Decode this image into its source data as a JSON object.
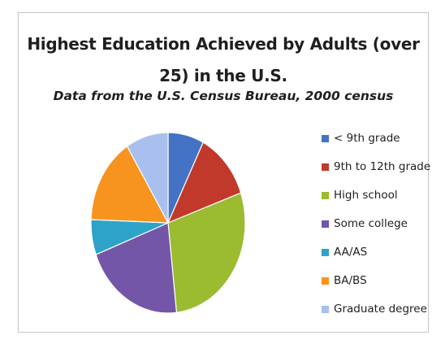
{
  "chart_data": {
    "type": "pie",
    "title": "Highest Education Achieved by Adults (over 25) in the U.S.",
    "title_lines": [
      "Highest Education Achieved by Adults (over",
      "25) in the U.S."
    ],
    "subtitle": "Data from the U.S. Census Bureau, 2000 census",
    "legend_position": "right",
    "slices": [
      {
        "label": "< 9th grade",
        "value": 7.5,
        "color": "#4472C4"
      },
      {
        "label": "9th to 12th grade",
        "value": 12.1,
        "color": "#C0392B"
      },
      {
        "label": "High school",
        "value": 28.6,
        "color": "#9BBB30"
      },
      {
        "label": "Some college",
        "value": 21.0,
        "color": "#7356A8"
      },
      {
        "label": "AA/AS",
        "value": 6.3,
        "color": "#2EA3C9"
      },
      {
        "label": "BA/BS",
        "value": 15.5,
        "color": "#F79420"
      },
      {
        "label": "Graduate degree",
        "value": 8.9,
        "color": "#A9C0EE"
      }
    ]
  }
}
